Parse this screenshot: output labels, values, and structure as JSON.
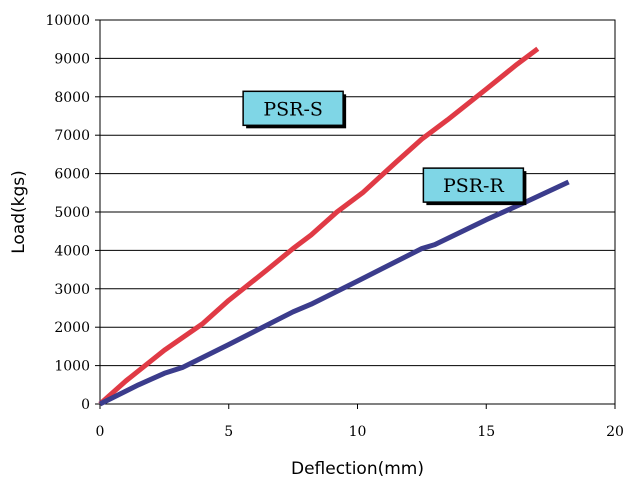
{
  "chart_data": {
    "type": "line",
    "title": "",
    "xlabel": "Deflection(mm)",
    "ylabel": "Load(kgs)",
    "xlim": [
      0,
      20
    ],
    "ylim": [
      0,
      10000
    ],
    "xticks": [
      0,
      5,
      10,
      15,
      20
    ],
    "yticks": [
      0,
      1000,
      2000,
      3000,
      4000,
      5000,
      6000,
      7000,
      8000,
      9000,
      10000
    ],
    "grid": "horizontal",
    "legend": "none",
    "series": [
      {
        "name": "PSR-S",
        "color": "#e03a45",
        "label_position": "upper-middle",
        "points": [
          [
            0,
            0
          ],
          [
            1,
            600
          ],
          [
            2.5,
            1400
          ],
          [
            4,
            2100
          ],
          [
            5,
            2700
          ],
          [
            6.5,
            3500
          ],
          [
            7.5,
            4050
          ],
          [
            8.2,
            4400
          ],
          [
            9.2,
            5000
          ],
          [
            10.2,
            5500
          ],
          [
            11.5,
            6300
          ],
          [
            12.5,
            6900
          ],
          [
            13.5,
            7400
          ],
          [
            15,
            8200
          ],
          [
            16.2,
            8850
          ],
          [
            17,
            9250
          ]
        ]
      },
      {
        "name": "PSR-R",
        "color": "#3b3c8c",
        "label_position": "right-middle",
        "points": [
          [
            0,
            0
          ],
          [
            1.5,
            500
          ],
          [
            2.5,
            800
          ],
          [
            3.2,
            950
          ],
          [
            5,
            1550
          ],
          [
            7.5,
            2400
          ],
          [
            8.2,
            2600
          ],
          [
            10,
            3200
          ],
          [
            12.5,
            4050
          ],
          [
            13,
            4150
          ],
          [
            15,
            4800
          ],
          [
            16.5,
            5250
          ],
          [
            18.2,
            5780
          ]
        ]
      }
    ]
  }
}
